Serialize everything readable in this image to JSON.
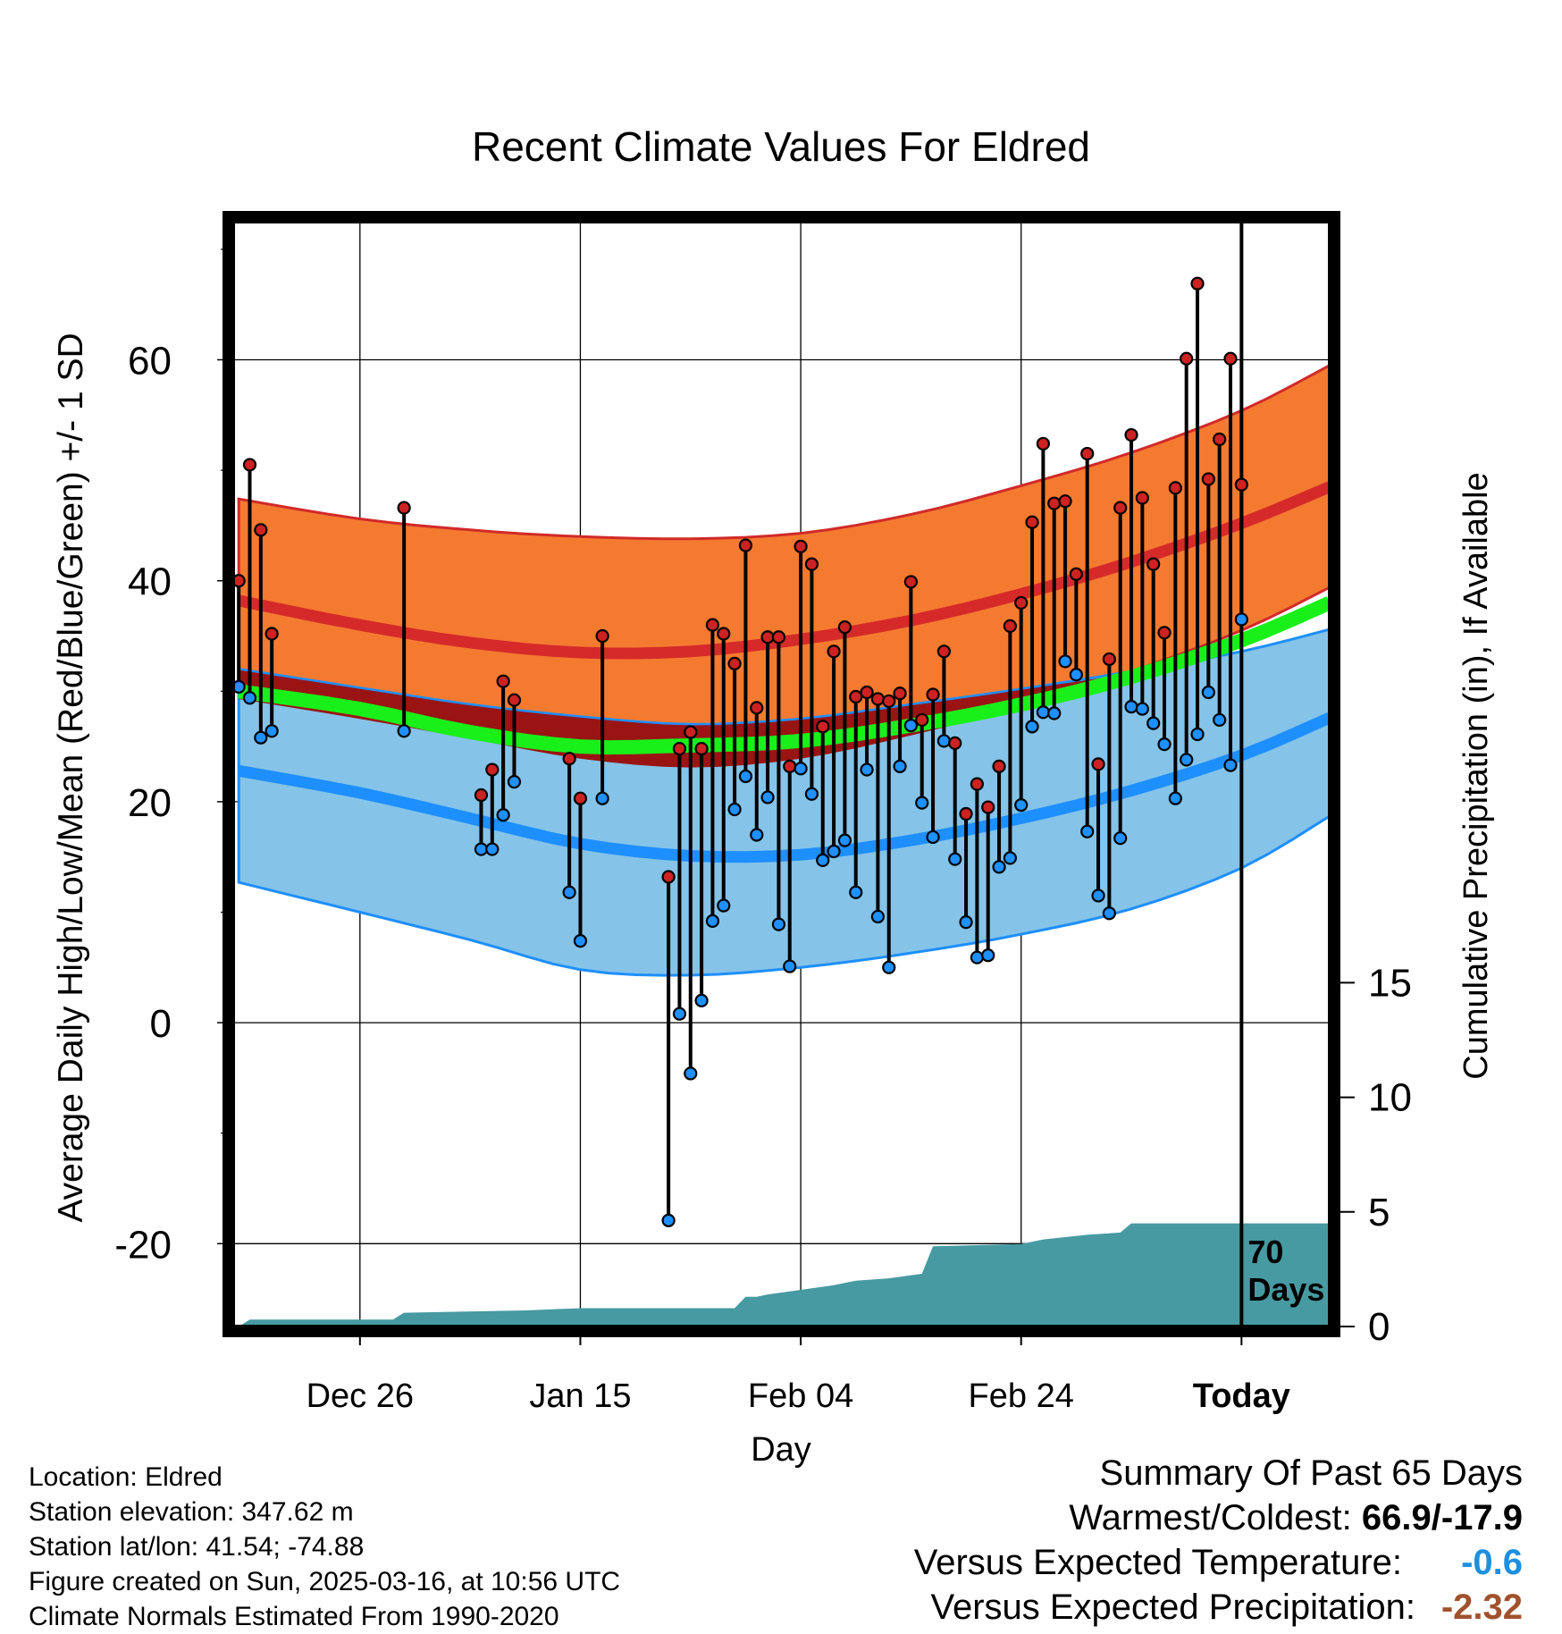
{
  "chart_data": {
    "type": "line",
    "title": "Recent Climate Values For Eldred",
    "xlabel": "Day",
    "ylabel": "Average Daily High/Low/Mean (Red/Blue/Green) +/- 1 SD",
    "ylabel_right": "Cumulative Precipitation (in), If Available",
    "x_tick_labels": [
      "Dec 26",
      "Jan 15",
      "Feb 04",
      "Feb 24",
      "Today"
    ],
    "ylim": [
      -27.5,
      72.5
    ],
    "y_ticks": [
      -20,
      0,
      20,
      40,
      60
    ],
    "y_ticks_right": [
      0,
      5,
      10,
      15
    ],
    "ylim_right": [
      0,
      48.2
    ],
    "xlim": [
      -11.5,
      88
    ],
    "grid": true,
    "today_marker_label": "70\nDays",
    "normals": {
      "x": [
        -11,
        0,
        10,
        20,
        30,
        40,
        50,
        60,
        70,
        80,
        88
      ],
      "high_mean": [
        38.2,
        36.0,
        34.4,
        33.5,
        33.6,
        34.7,
        36.4,
        38.8,
        41.7,
        45.2,
        48.5
      ],
      "high_sd_upper": [
        47.4,
        45.6,
        44.6,
        44.0,
        43.8,
        44.3,
        46.0,
        48.6,
        51.6,
        55.4,
        59.5
      ],
      "high_sd_lower": [
        29.3,
        27.5,
        25.7,
        23.9,
        23.1,
        23.9,
        26.0,
        28.6,
        31.8,
        35.5,
        39.4
      ],
      "low_mean": [
        22.8,
        20.8,
        18.5,
        16.2,
        15.1,
        15.2,
        16.5,
        18.5,
        21.0,
        24.2,
        27.6
      ],
      "low_sd_upper": [
        32.0,
        30.3,
        28.8,
        27.7,
        27.0,
        27.5,
        28.8,
        30.2,
        31.8,
        33.6,
        35.6
      ],
      "low_sd_lower": [
        12.7,
        10.0,
        7.5,
        4.8,
        4.3,
        5.0,
        6.3,
        8.0,
        10.3,
        14.0,
        18.7
      ],
      "mean": [
        30.0,
        28.4,
        26.3,
        25.0,
        25.1,
        25.5,
        26.9,
        28.8,
        31.3,
        34.6,
        38.0
      ]
    },
    "series": [
      {
        "name": "Daily High/Low",
        "x": [
          -11,
          -10,
          -9,
          -8,
          4,
          11,
          12,
          13,
          14,
          19,
          20,
          22,
          28,
          29,
          30,
          31,
          32,
          33,
          34,
          35,
          36,
          37,
          38,
          39,
          40,
          41,
          42,
          43,
          44,
          45,
          46,
          47,
          48,
          49,
          50,
          51,
          52,
          53,
          54,
          55,
          56,
          57,
          58,
          59,
          60,
          61,
          62,
          63,
          64,
          65,
          66,
          67,
          68,
          69,
          70,
          71,
          72,
          73,
          74,
          75,
          76,
          77,
          78,
          79,
          80
        ],
        "high": [
          40.0,
          50.5,
          44.6,
          35.2,
          46.6,
          20.6,
          22.9,
          30.9,
          29.2,
          23.9,
          20.3,
          35.0,
          13.2,
          24.8,
          26.3,
          24.8,
          36.0,
          35.2,
          32.5,
          43.2,
          28.5,
          34.9,
          34.9,
          23.2,
          43.1,
          41.5,
          26.8,
          33.6,
          35.8,
          29.5,
          29.9,
          29.3,
          29.1,
          29.8,
          39.9,
          27.4,
          29.7,
          33.6,
          25.3,
          18.9,
          21.6,
          19.5,
          23.2,
          35.9,
          38.0,
          45.3,
          52.4,
          47.0,
          47.2,
          40.6,
          51.5,
          23.4,
          32.9,
          46.6,
          53.2,
          47.5,
          41.5,
          35.3,
          48.4,
          60.1,
          66.9,
          49.2,
          52.8,
          60.1,
          48.7
        ],
        "low": [
          30.4,
          29.4,
          25.8,
          26.4,
          26.4,
          15.7,
          15.7,
          18.8,
          21.8,
          11.8,
          7.4,
          20.3,
          -17.9,
          0.8,
          -4.6,
          2.0,
          9.2,
          10.6,
          19.3,
          22.3,
          17.0,
          20.4,
          8.9,
          5.1,
          23.0,
          20.7,
          14.7,
          15.5,
          16.5,
          11.8,
          22.9,
          9.6,
          5.0,
          23.2,
          26.9,
          19.9,
          16.8,
          25.5,
          14.8,
          9.1,
          5.9,
          6.1,
          14.1,
          14.9,
          19.7,
          26.8,
          28.1,
          28.0,
          32.7,
          31.5,
          17.3,
          11.5,
          9.9,
          16.7,
          28.6,
          28.4,
          27.1,
          25.2,
          20.3,
          23.8,
          26.1,
          29.9,
          27.4,
          23.3,
          36.5
        ],
        "high_color": "#cc2222",
        "low_color": "#1e90ff"
      }
    ],
    "precipitation": {
      "x": [
        -11,
        -10,
        3,
        4,
        15,
        20,
        34,
        35,
        36,
        37,
        40,
        43,
        45,
        48,
        51,
        52,
        60,
        62,
        66,
        69,
        70,
        88
      ],
      "cumulative": [
        0.0,
        0.3,
        0.3,
        0.6,
        0.7,
        0.8,
        0.8,
        1.3,
        1.3,
        1.4,
        1.6,
        1.8,
        2.0,
        2.1,
        2.3,
        3.5,
        3.6,
        3.8,
        4.0,
        4.1,
        4.5,
        4.5
      ]
    }
  },
  "station_info": {
    "location": "Location: Eldred",
    "elevation": "Station elevation: 347.62 m",
    "latlon": "Station lat/lon: 41.54; -74.88",
    "created": "Figure created on Sun, 2025-03-16, at 10:56 UTC",
    "normals": "Climate Normals Estimated From 1990-2020"
  },
  "summary": {
    "title": "Summary Of Past 65 Days",
    "warmest_coldest_label": "Warmest/Coldest:",
    "warmest_coldest_value": "66.9/-17.9",
    "vs_temp_label": "Versus Expected Temperature:",
    "vs_temp_value": "-0.6",
    "vs_temp_color": "#1e8fe0",
    "vs_precip_label": "Versus Expected Precipitation:",
    "vs_precip_value": "-2.32",
    "vs_precip_color": "#a0522d"
  },
  "colors": {
    "high_band": "#f47a30",
    "high_band_edge": "#d12a2a",
    "high_mean_line": "#d62a2a",
    "low_band": "#85c3e8",
    "low_band_edge": "#1e8fff",
    "low_mean_line": "#1e8fff",
    "overlap_band": "#9a1414",
    "mean_line": "#19f019",
    "precip_fill": "#479aa2"
  }
}
